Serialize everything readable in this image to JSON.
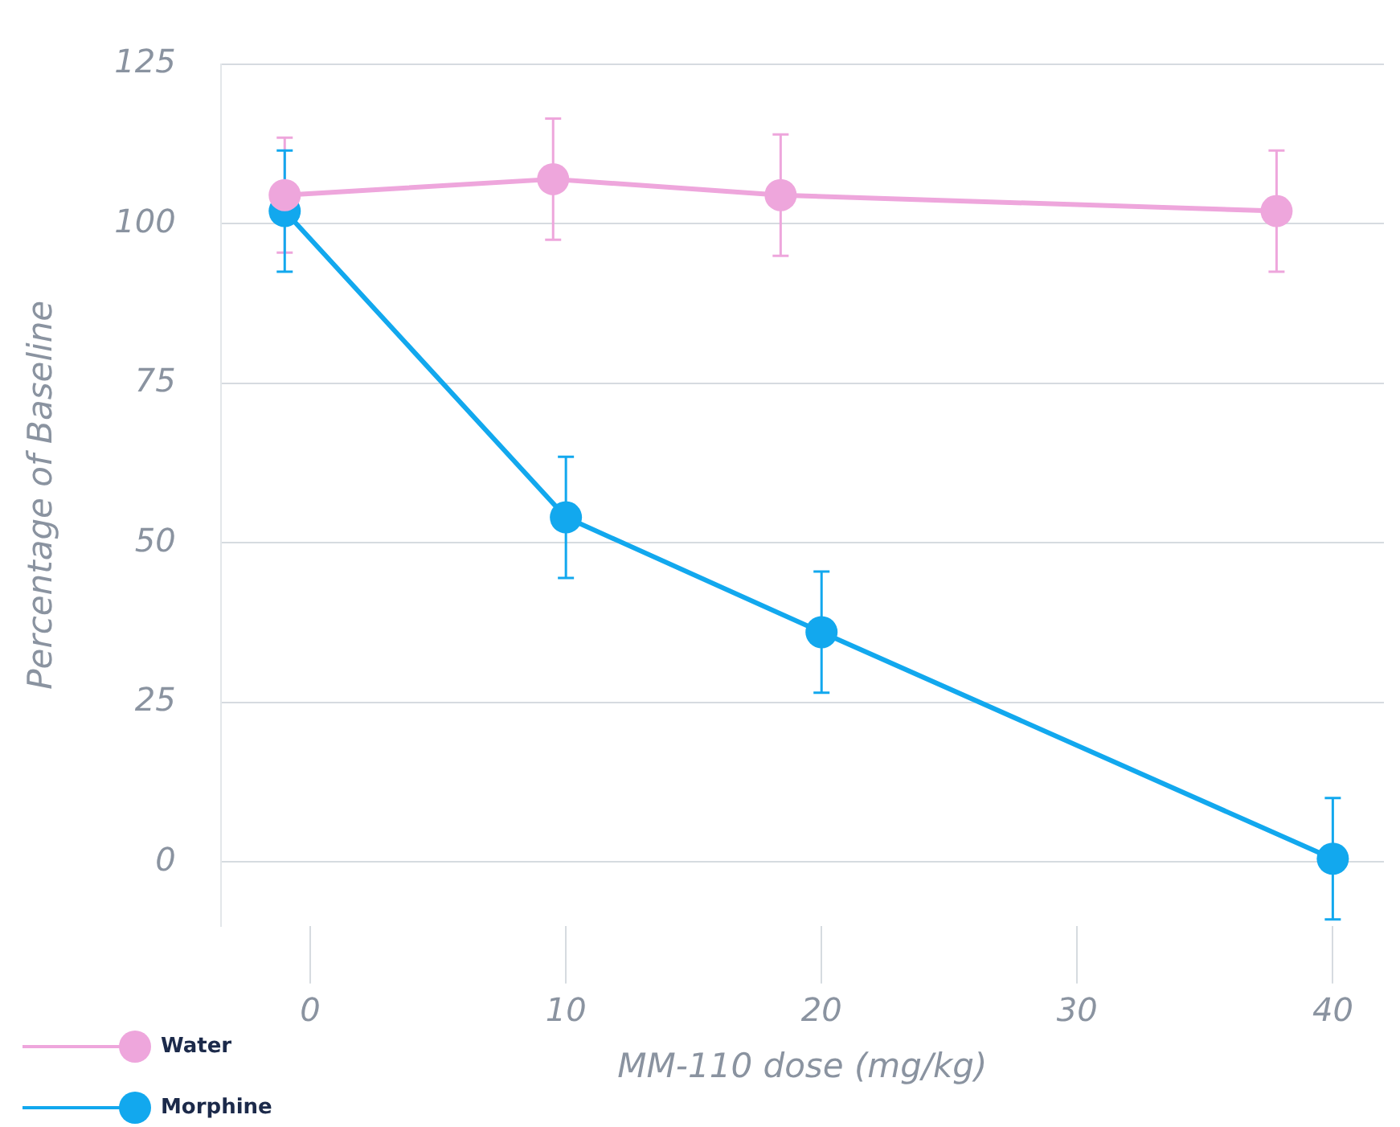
{
  "chart_data": {
    "type": "line",
    "xlabel": "MM-110 dose (mg/kg)",
    "ylabel": "Percentage of Baseline",
    "xlim": [
      -3.5,
      42
    ],
    "xticks": [
      0,
      10,
      20,
      30,
      40
    ],
    "ylim": [
      -10,
      125
    ],
    "yticks": [
      0,
      25,
      50,
      75,
      100,
      125
    ],
    "grid": "y",
    "legend": "bottom left",
    "marker": "circle",
    "series": [
      {
        "name": "Water",
        "color": "#eea6dc",
        "x": [
          -1,
          9.5,
          18.4,
          37.8
        ],
        "values": [
          104.5,
          107,
          104.5,
          102
        ],
        "errors": [
          9,
          9.5,
          9.5,
          9.5
        ]
      },
      {
        "name": "Morphine",
        "color": "#12a8ee",
        "x": [
          -1,
          10,
          20,
          40
        ],
        "values": [
          102,
          54,
          36,
          0.5
        ],
        "errors": [
          9.5,
          9.5,
          9.5,
          9.5
        ]
      }
    ]
  }
}
